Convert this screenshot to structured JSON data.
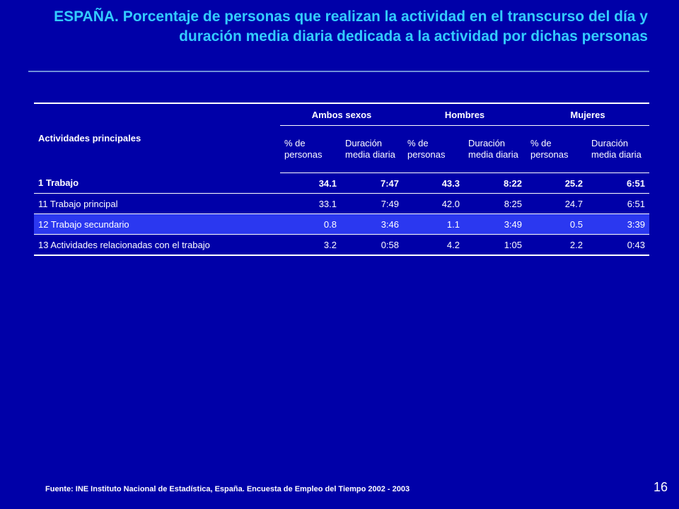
{
  "title": "ESPAÑA. Porcentaje de personas que realizan la actividad en el transcurso del día y duración media diaria dedicada a la actividad por dichas personas",
  "table": {
    "activities_header": "Actividades principales",
    "groups": [
      "Ambos sexos",
      "Hombres",
      "Mujeres"
    ],
    "subheaders": [
      "% de personas",
      "Duración media diaria",
      "% de personas",
      "Duración media diaria",
      "% de personas",
      "Duración media diaria"
    ],
    "rows": [
      {
        "label": "1 Trabajo",
        "cells": [
          "34.1",
          "7:47",
          "43.3",
          "8:22",
          "25.2",
          "6:51"
        ]
      },
      {
        "label": "11 Trabajo principal",
        "cells": [
          "33.1",
          "7:49",
          "42.0",
          "8:25",
          "24.7",
          "6:51"
        ]
      },
      {
        "label": "12 Trabajo secundario",
        "cells": [
          "0.8",
          "3:46",
          "1.1",
          "3:49",
          "0.5",
          "3:39"
        ]
      },
      {
        "label": "13 Actividades relacionadas con el trabajo",
        "cells": [
          "3.2",
          "0:58",
          "4.2",
          "1:05",
          "2.2",
          "0:43"
        ]
      }
    ]
  },
  "footnote": "Fuente: INE Instituto Nacional de Estadística, España. Encuesta de Empleo del Tiempo 2002 - 2003",
  "page_number": "16",
  "colors": {
    "background": "#0000A8",
    "title": "#33CCFF",
    "highlight_row": "#2B38F0",
    "rule": "#6F8FD8"
  }
}
